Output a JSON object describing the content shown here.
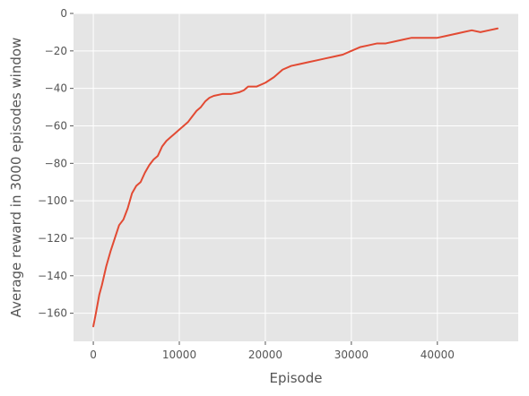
{
  "chart_data": {
    "type": "line",
    "title": "",
    "xlabel": "Episode",
    "ylabel": "Average reward in 3000 episodes window",
    "xlim": [
      -2300,
      49400
    ],
    "ylim": [
      -175,
      0
    ],
    "xticks": [
      0,
      10000,
      20000,
      30000,
      40000
    ],
    "xtick_labels": [
      "0",
      "10000",
      "20000",
      "30000",
      "40000"
    ],
    "yticks": [
      0,
      -20,
      -40,
      -60,
      -80,
      -100,
      -120,
      -140,
      -160
    ],
    "ytick_labels": [
      "0",
      "−20",
      "−40",
      "−60",
      "−80",
      "−100",
      "−120",
      "−140",
      "−160"
    ],
    "grid": true,
    "style": "ggplot",
    "colors": {
      "background": "#E5E5E5",
      "grid": "#FFFFFF",
      "line": "#E24A33",
      "text": "#555555"
    },
    "series": [
      {
        "x": [
          0,
          300,
          700,
          1000,
          1500,
          2000,
          2500,
          3000,
          3500,
          4000,
          4500,
          5000,
          5500,
          6000,
          6500,
          7000,
          7500,
          8000,
          8500,
          9000,
          9500,
          10000,
          10500,
          11000,
          11500,
          12000,
          12500,
          13000,
          13500,
          14000,
          15000,
          16000,
          17000,
          17500,
          18000,
          19000,
          20000,
          21000,
          22000,
          23000,
          24000,
          25000,
          26000,
          27000,
          28000,
          29000,
          30000,
          31000,
          32000,
          33000,
          34000,
          35000,
          36000,
          37000,
          38000,
          39000,
          40000,
          41000,
          42000,
          43000,
          44000,
          45000,
          46000,
          47000
        ],
        "y": [
          -167,
          -160,
          -150,
          -145,
          -135,
          -127,
          -120,
          -113,
          -110,
          -104,
          -96,
          -92,
          -90,
          -85,
          -81,
          -78,
          -76,
          -71,
          -68,
          -66,
          -64,
          -62,
          -60,
          -58,
          -55,
          -52,
          -50,
          -47,
          -45,
          -44,
          -43,
          -43,
          -42,
          -41,
          -39,
          -39,
          -37,
          -34,
          -30,
          -28,
          -27,
          -26,
          -25,
          -24,
          -23,
          -22,
          -20,
          -18,
          -17,
          -16,
          -16,
          -15,
          -14,
          -13,
          -13,
          -13,
          -13,
          -12,
          -11,
          -10,
          -9,
          -10,
          -9,
          -8
        ]
      }
    ]
  }
}
